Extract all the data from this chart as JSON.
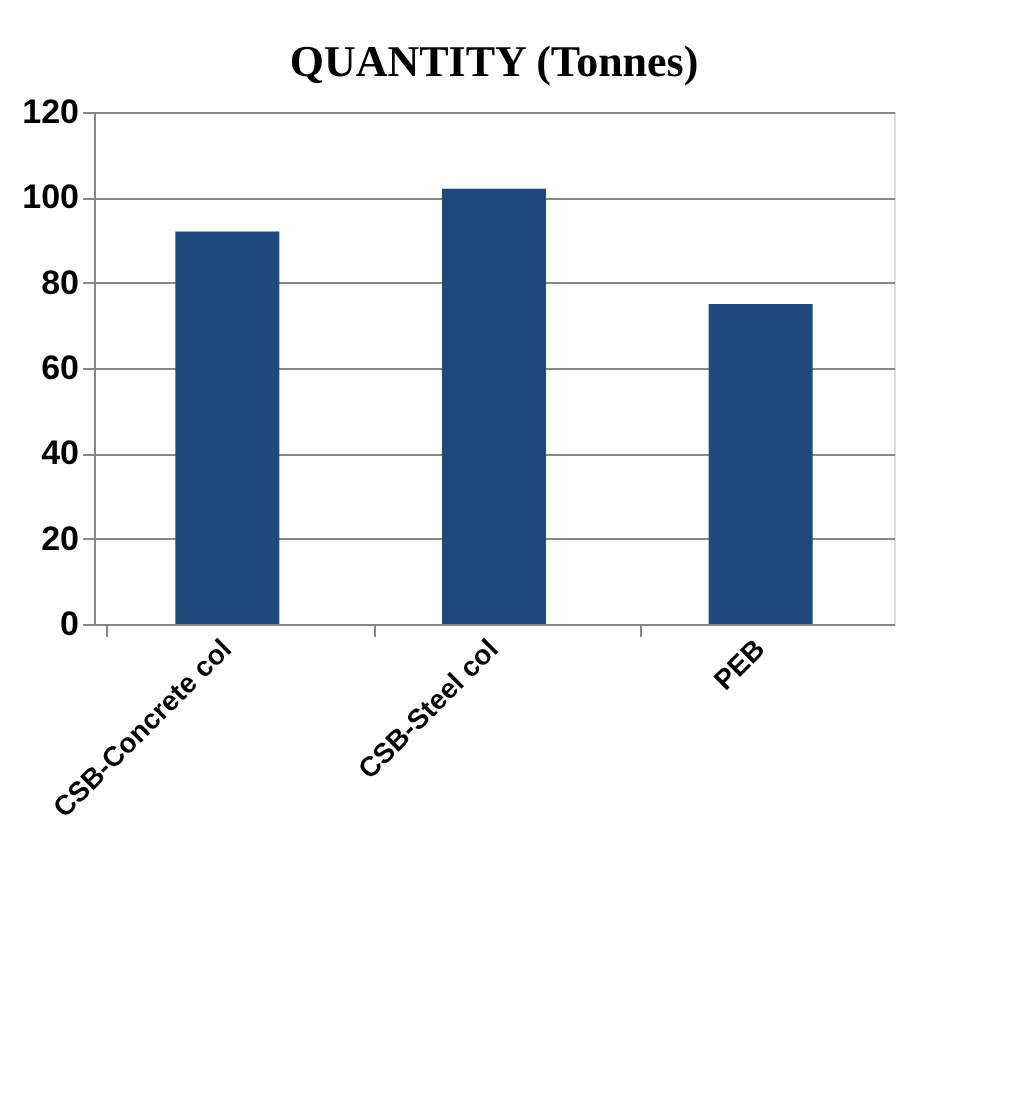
{
  "chart_data": {
    "type": "bar",
    "title": "QUANTITY (Tonnes)",
    "categories": [
      "CSB-Concrete col",
      "CSB-Steel col",
      "PEB"
    ],
    "values": [
      92,
      102,
      75
    ],
    "color": "#1f497d",
    "ylim": [
      0,
      120
    ],
    "yticks": [
      0,
      20,
      40,
      60,
      80,
      100,
      120
    ],
    "grid": "y"
  }
}
